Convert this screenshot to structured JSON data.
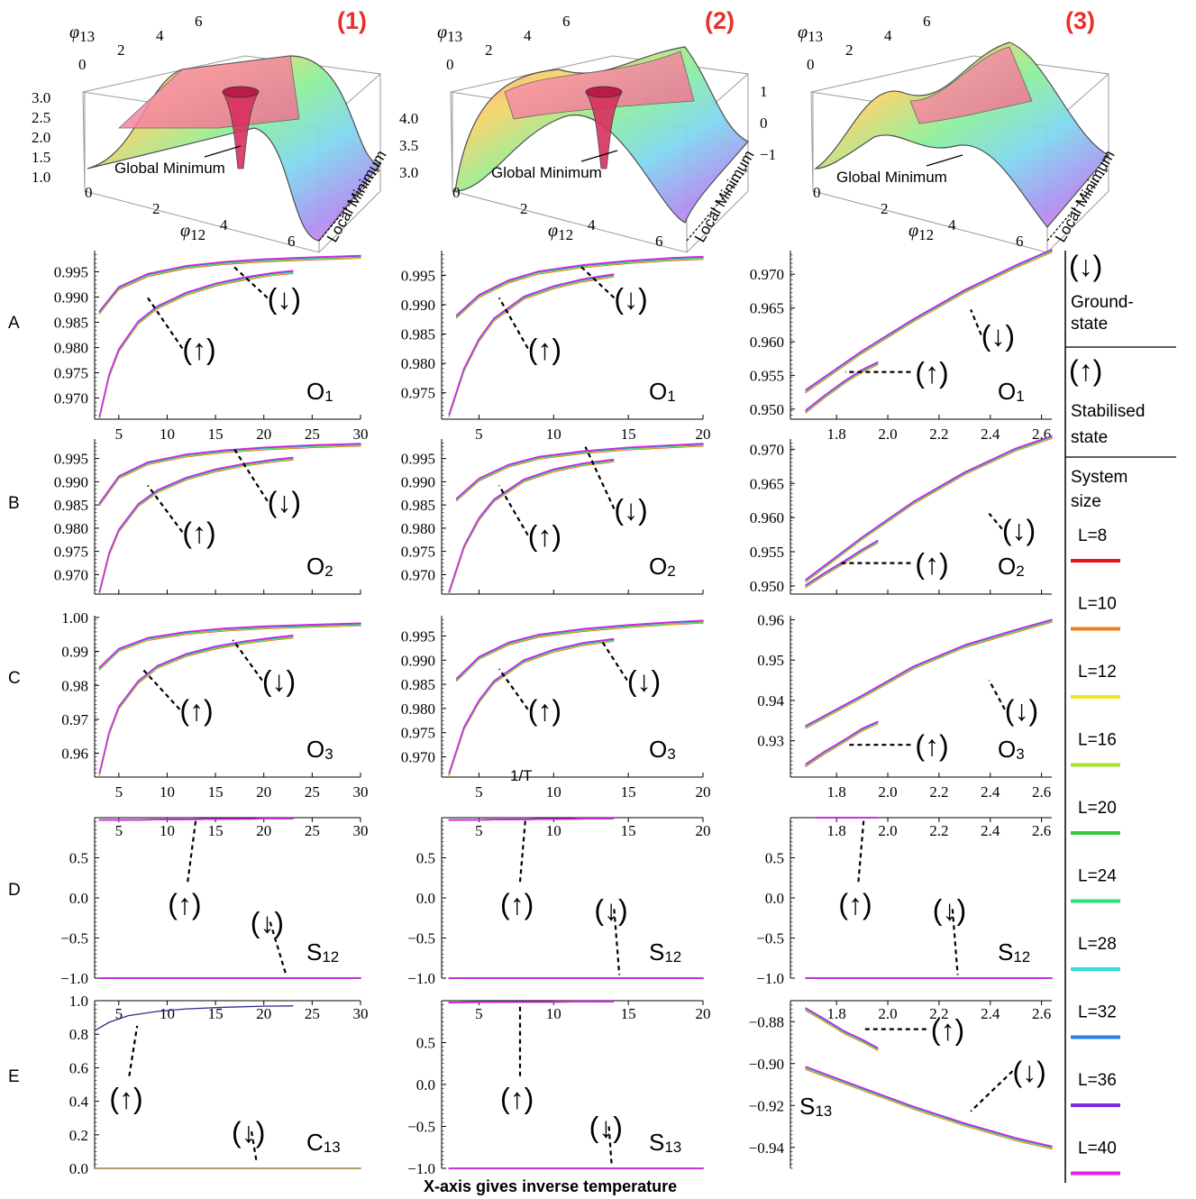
{
  "figure": {
    "footer": "X-axis gives inverse temperature",
    "xaxis_label": "1/T",
    "row_labels": [
      "A",
      "B",
      "C",
      "D",
      "E"
    ],
    "column_labels": [
      "(1)",
      "(2)",
      "(3)"
    ],
    "arrow_up": "(↑)",
    "arrow_down": "(↓)"
  },
  "surfaces": [
    {
      "label": "(1)",
      "annotations": [
        "Global Minimum",
        "Local Minimum"
      ],
      "x_axis": "φ12",
      "y_axis": "φ13",
      "x_ticks": [
        "0",
        "2",
        "4",
        "6"
      ],
      "y_ticks": [
        "0",
        "2",
        "4",
        "6"
      ],
      "z_ticks": [
        "1.0",
        "1.5",
        "2.0",
        "2.5",
        "3.0"
      ]
    },
    {
      "label": "(2)",
      "annotations": [
        "Global Minimum",
        "Local Minimum"
      ],
      "x_axis": "φ12",
      "y_axis": "φ13",
      "x_ticks": [
        "0",
        "2",
        "4",
        "6"
      ],
      "y_ticks": [
        "0",
        "2",
        "4",
        "6"
      ],
      "z_ticks": [
        "3.0",
        "3.5",
        "4.0"
      ]
    },
    {
      "label": "(3)",
      "annotations": [
        "Global Minimum",
        "Local Minimum"
      ],
      "x_axis": "φ12",
      "y_axis": "φ13",
      "x_ticks": [
        "0",
        "2",
        "4",
        "6"
      ],
      "y_ticks": [
        "0",
        "2",
        "4",
        "6"
      ],
      "z_ticks": [
        "-1",
        "0",
        "1"
      ]
    }
  ],
  "legend": {
    "ground_state": "Ground-\nstate",
    "stabilised_state": "Stabilised\nstate",
    "system_size": "System\nsize",
    "entries": [
      {
        "label": "L=8",
        "color": "#e8141b"
      },
      {
        "label": "L=10",
        "color": "#f07d1a"
      },
      {
        "label": "L=12",
        "color": "#f5e51e"
      },
      {
        "label": "L=16",
        "color": "#a7e02a"
      },
      {
        "label": "L=20",
        "color": "#34c83c"
      },
      {
        "label": "L=24",
        "color": "#2fe07e"
      },
      {
        "label": "L=28",
        "color": "#2fe0e2"
      },
      {
        "label": "L=32",
        "color": "#2a82e8"
      },
      {
        "label": "L=36",
        "color": "#7a2ee0"
      },
      {
        "label": "L=40",
        "color": "#e81ee6"
      }
    ]
  },
  "chart_data": [
    {
      "id": "A1",
      "type": "line",
      "title": "O1",
      "xlim": [
        2.5,
        30
      ],
      "ylim": [
        0.9658,
        0.9992
      ],
      "x_ticks": [
        5,
        10,
        15,
        20,
        25,
        30
      ],
      "y_ticks": [
        0.97,
        0.975,
        0.98,
        0.985,
        0.99,
        0.995
      ],
      "series": [
        {
          "state": "ground",
          "x": [
            3,
            5,
            8,
            12,
            16,
            20,
            25,
            30
          ],
          "y": [
            0.987,
            0.9918,
            0.9944,
            0.996,
            0.9968,
            0.9973,
            0.9977,
            0.998
          ]
        },
        {
          "state": "stabilised",
          "x": [
            3,
            4,
            5,
            7,
            9,
            12,
            15,
            18,
            21,
            23
          ],
          "y": [
            0.9662,
            0.9745,
            0.9795,
            0.985,
            0.988,
            0.9907,
            0.9925,
            0.9937,
            0.9946,
            0.995
          ]
        }
      ]
    },
    {
      "id": "A2",
      "type": "line",
      "title": "O1",
      "xlim": [
        2.5,
        20
      ],
      "ylim": [
        0.9705,
        0.9992
      ],
      "x_ticks": [
        5,
        10,
        15,
        20
      ],
      "y_ticks": [
        0.975,
        0.98,
        0.985,
        0.99,
        0.995
      ],
      "series": [
        {
          "state": "ground",
          "x": [
            3.5,
            5,
            7,
            9,
            12,
            15,
            18,
            20
          ],
          "y": [
            0.988,
            0.9915,
            0.994,
            0.9955,
            0.9966,
            0.9973,
            0.9978,
            0.998
          ]
        },
        {
          "state": "stabilised",
          "x": [
            3,
            4,
            5,
            6,
            8,
            10,
            12,
            14
          ],
          "y": [
            0.9712,
            0.979,
            0.984,
            0.9875,
            0.9912,
            0.993,
            0.9942,
            0.995
          ]
        }
      ]
    },
    {
      "id": "A3",
      "type": "line",
      "title": "O1",
      "xlim": [
        1.62,
        2.64
      ],
      "ylim": [
        0.9485,
        0.9735
      ],
      "x_ticks": [
        1.8,
        2.0,
        2.2,
        2.4,
        2.6
      ],
      "y_ticks": [
        0.95,
        0.955,
        0.96,
        0.965,
        0.97
      ],
      "series": [
        {
          "state": "ground",
          "x": [
            1.68,
            1.9,
            2.1,
            2.3,
            2.5,
            2.64
          ],
          "y": [
            0.9527,
            0.9585,
            0.9632,
            0.9675,
            0.9712,
            0.9735
          ]
        },
        {
          "state": "stabilised",
          "x": [
            1.68,
            1.75,
            1.83,
            1.9,
            1.96
          ],
          "y": [
            0.9497,
            0.9518,
            0.954,
            0.9557,
            0.9568
          ]
        }
      ]
    },
    {
      "id": "B1",
      "type": "line",
      "title": "O2",
      "xlim": [
        2.5,
        30
      ],
      "ylim": [
        0.9658,
        0.9992
      ],
      "x_ticks": [
        5,
        10,
        15,
        20,
        25,
        30
      ],
      "y_ticks": [
        0.97,
        0.975,
        0.98,
        0.985,
        0.99,
        0.995
      ],
      "series": [
        {
          "state": "ground",
          "x": [
            3,
            5,
            8,
            12,
            16,
            20,
            25,
            30
          ],
          "y": [
            0.9852,
            0.991,
            0.994,
            0.9957,
            0.9966,
            0.9972,
            0.9977,
            0.998
          ]
        },
        {
          "state": "stabilised",
          "x": [
            3,
            4,
            5,
            7,
            9,
            12,
            15,
            18,
            21,
            23
          ],
          "y": [
            0.9662,
            0.9745,
            0.9795,
            0.985,
            0.988,
            0.9907,
            0.9925,
            0.9937,
            0.9946,
            0.995
          ]
        }
      ]
    },
    {
      "id": "B2",
      "type": "line",
      "title": "O2",
      "xlim": [
        2.5,
        20
      ],
      "ylim": [
        0.9658,
        0.9992
      ],
      "x_ticks": [
        5,
        10,
        15,
        20
      ],
      "y_ticks": [
        0.97,
        0.975,
        0.98,
        0.985,
        0.99,
        0.995
      ],
      "series": [
        {
          "state": "ground",
          "x": [
            3.5,
            5,
            7,
            9,
            12,
            15,
            18,
            20
          ],
          "y": [
            0.9862,
            0.9905,
            0.9935,
            0.9952,
            0.9964,
            0.9972,
            0.9977,
            0.998
          ]
        },
        {
          "state": "stabilised",
          "x": [
            3,
            4,
            5,
            6,
            8,
            10,
            12,
            14
          ],
          "y": [
            0.9662,
            0.976,
            0.982,
            0.986,
            0.9903,
            0.9925,
            0.9938,
            0.9946
          ]
        }
      ]
    },
    {
      "id": "B3",
      "type": "line",
      "title": "O2",
      "xlim": [
        1.62,
        2.64
      ],
      "ylim": [
        0.9488,
        0.9715
      ],
      "x_ticks": [
        1.8,
        2.0,
        2.2,
        2.4,
        2.6
      ],
      "y_ticks": [
        0.95,
        0.955,
        0.96,
        0.965,
        0.97
      ],
      "series": [
        {
          "state": "ground",
          "x": [
            1.68,
            1.9,
            2.1,
            2.3,
            2.5,
            2.64
          ],
          "y": [
            0.9508,
            0.957,
            0.9622,
            0.9665,
            0.97,
            0.9718
          ]
        },
        {
          "state": "stabilised",
          "x": [
            1.68,
            1.75,
            1.83,
            1.9,
            1.96
          ],
          "y": [
            0.95,
            0.9517,
            0.9535,
            0.9552,
            0.9565
          ]
        }
      ]
    },
    {
      "id": "C1",
      "type": "line",
      "title": "O3",
      "xlim": [
        2.5,
        30
      ],
      "ylim": [
        0.953,
        1.0005
      ],
      "x_ticks": [
        5,
        10,
        15,
        20,
        25,
        30
      ],
      "y_ticks": [
        0.96,
        0.97,
        0.98,
        0.99,
        1.0
      ],
      "series": [
        {
          "state": "ground",
          "x": [
            3,
            5,
            8,
            12,
            16,
            20,
            25,
            30
          ],
          "y": [
            0.985,
            0.9905,
            0.9937,
            0.9955,
            0.9965,
            0.9971,
            0.9976,
            0.998
          ]
        },
        {
          "state": "stabilised",
          "x": [
            3,
            4,
            5,
            7,
            9,
            12,
            15,
            18,
            21,
            23
          ],
          "y": [
            0.954,
            0.966,
            0.9735,
            0.981,
            0.9855,
            0.989,
            0.9912,
            0.9927,
            0.9938,
            0.9944
          ]
        }
      ]
    },
    {
      "id": "C2",
      "type": "line",
      "title": "O3",
      "xlim": [
        2.5,
        20
      ],
      "ylim": [
        0.9658,
        0.9992
      ],
      "x_ticks": [
        5,
        10,
        15,
        20
      ],
      "y_ticks": [
        0.97,
        0.975,
        0.98,
        0.985,
        0.99,
        0.995
      ],
      "series": [
        {
          "state": "ground",
          "x": [
            3.5,
            5,
            7,
            9,
            12,
            15,
            18,
            20
          ],
          "y": [
            0.986,
            0.9905,
            0.9935,
            0.9951,
            0.9963,
            0.9971,
            0.9977,
            0.998
          ]
        },
        {
          "state": "stabilised",
          "x": [
            3,
            4,
            5,
            6,
            8,
            10,
            12,
            14
          ],
          "y": [
            0.9665,
            0.976,
            0.9815,
            0.9855,
            0.9898,
            0.992,
            0.9934,
            0.9942
          ]
        }
      ]
    },
    {
      "id": "C3",
      "type": "line",
      "title": "O3",
      "xlim": [
        1.62,
        2.64
      ],
      "ylim": [
        0.921,
        0.961
      ],
      "x_ticks": [
        1.8,
        2.0,
        2.2,
        2.4,
        2.6
      ],
      "y_ticks": [
        0.93,
        0.94,
        0.95,
        0.96
      ],
      "series": [
        {
          "state": "ground",
          "x": [
            1.68,
            1.9,
            2.1,
            2.3,
            2.5,
            2.64
          ],
          "y": [
            0.9335,
            0.941,
            0.9482,
            0.9535,
            0.9573,
            0.9598
          ]
        },
        {
          "state": "stabilised",
          "x": [
            1.68,
            1.75,
            1.83,
            1.9,
            1.96
          ],
          "y": [
            0.924,
            0.927,
            0.93,
            0.9328,
            0.9345
          ]
        }
      ]
    },
    {
      "id": "D1",
      "type": "line",
      "title": "S12",
      "xlim": [
        2.5,
        30
      ],
      "ylim": [
        -1.0,
        1.0
      ],
      "x_ticks": [
        5,
        10,
        15,
        20,
        25,
        30
      ],
      "y_ticks": [
        -1.0,
        -0.5,
        0.0,
        0.5
      ],
      "series": [
        {
          "state": "stabilised",
          "x": [
            3,
            23
          ],
          "y": [
            0.97,
            0.99
          ]
        },
        {
          "state": "ground",
          "x": [
            3,
            30
          ],
          "y": [
            -1.0,
            -1.0
          ]
        }
      ]
    },
    {
      "id": "D2",
      "type": "line",
      "title": "S12",
      "xlim": [
        2.5,
        20
      ],
      "ylim": [
        -1.0,
        1.0
      ],
      "x_ticks": [
        5,
        10,
        15,
        20
      ],
      "y_ticks": [
        -1.0,
        -0.5,
        0.0,
        0.5
      ],
      "series": [
        {
          "state": "stabilised",
          "x": [
            3,
            14
          ],
          "y": [
            0.97,
            0.99
          ]
        },
        {
          "state": "ground",
          "x": [
            3,
            20
          ],
          "y": [
            -1.0,
            -1.0
          ]
        }
      ]
    },
    {
      "id": "D3",
      "type": "line",
      "title": "S12",
      "xlim": [
        1.62,
        2.64
      ],
      "ylim": [
        -1.0,
        1.0
      ],
      "x_ticks": [
        1.8,
        2.0,
        2.2,
        2.4,
        2.6
      ],
      "y_ticks": [
        -1.0,
        -0.5,
        0.0,
        0.5
      ],
      "series": [
        {
          "state": "stabilised",
          "x": [
            1.72,
            1.96
          ],
          "y": [
            1.0,
            1.0
          ]
        },
        {
          "state": "ground",
          "x": [
            1.68,
            2.64
          ],
          "y": [
            -1.0,
            -1.0
          ]
        }
      ]
    },
    {
      "id": "E1",
      "type": "line",
      "title": "C13",
      "xlim": [
        2.5,
        30
      ],
      "ylim": [
        0.0,
        1.0
      ],
      "x_ticks": [
        5,
        10,
        15,
        20,
        25,
        30
      ],
      "y_ticks": [
        0.0,
        0.2,
        0.4,
        0.6,
        0.8,
        1.0
      ],
      "series": [
        {
          "state": "stabilised",
          "x": [
            2.5,
            4,
            6,
            9,
            12,
            16,
            20,
            23
          ],
          "y": [
            0.83,
            0.88,
            0.92,
            0.945,
            0.96,
            0.97,
            0.976,
            0.978
          ]
        },
        {
          "state": "ground",
          "x": [
            2.5,
            30
          ],
          "y": [
            0.0,
            0.0
          ]
        }
      ]
    },
    {
      "id": "E2",
      "type": "line",
      "title": "S13",
      "xlim": [
        2.5,
        20
      ],
      "ylim": [
        -1.0,
        1.0
      ],
      "x_ticks": [
        5,
        10,
        15,
        20
      ],
      "y_ticks": [
        -1.0,
        -0.5,
        0.0,
        0.5
      ],
      "series": [
        {
          "state": "stabilised",
          "x": [
            3,
            14
          ],
          "y": [
            0.98,
            0.99
          ]
        },
        {
          "state": "ground",
          "x": [
            3,
            20
          ],
          "y": [
            -1.0,
            -1.0
          ]
        }
      ]
    },
    {
      "id": "E3",
      "type": "line",
      "title": "S13",
      "xlim": [
        1.62,
        2.64
      ],
      "ylim": [
        -0.95,
        -0.87
      ],
      "x_ticks": [
        1.8,
        2.0,
        2.2,
        2.4,
        2.6
      ],
      "y_ticks": [
        -0.94,
        -0.92,
        -0.9,
        -0.88
      ],
      "series": [
        {
          "state": "ground",
          "x": [
            1.68,
            1.9,
            2.1,
            2.3,
            2.5,
            2.64
          ],
          "y": [
            -0.902,
            -0.912,
            -0.921,
            -0.929,
            -0.936,
            -0.94
          ]
        },
        {
          "state": "stabilised",
          "x": [
            1.68,
            1.75,
            1.83,
            1.9,
            1.96
          ],
          "y": [
            -0.874,
            -0.879,
            -0.885,
            -0.889,
            -0.893
          ]
        }
      ]
    }
  ]
}
